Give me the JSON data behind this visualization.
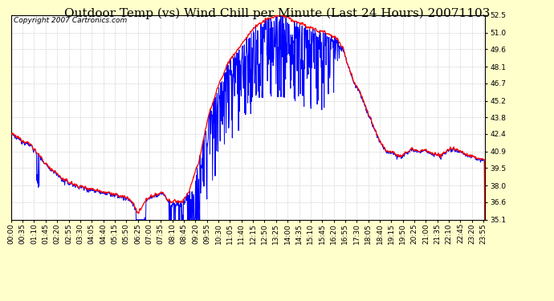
{
  "title": "Outdoor Temp (vs) Wind Chill per Minute (Last 24 Hours) 20071103",
  "copyright_text": "Copyright 2007 Cartronics.com",
  "background_color": "#FFFFCC",
  "plot_bg_color": "#FFFFFF",
  "grid_color": "#BBBBBB",
  "line_color_temp": "#FF0000",
  "line_color_chill": "#0000FF",
  "ylim": [
    35.1,
    52.5
  ],
  "yticks": [
    35.1,
    36.6,
    38.0,
    39.5,
    40.9,
    42.4,
    43.8,
    45.2,
    46.7,
    48.1,
    49.6,
    51.0,
    52.5
  ],
  "title_fontsize": 11,
  "tick_label_fontsize": 6.5,
  "copyright_fontsize": 6.5
}
